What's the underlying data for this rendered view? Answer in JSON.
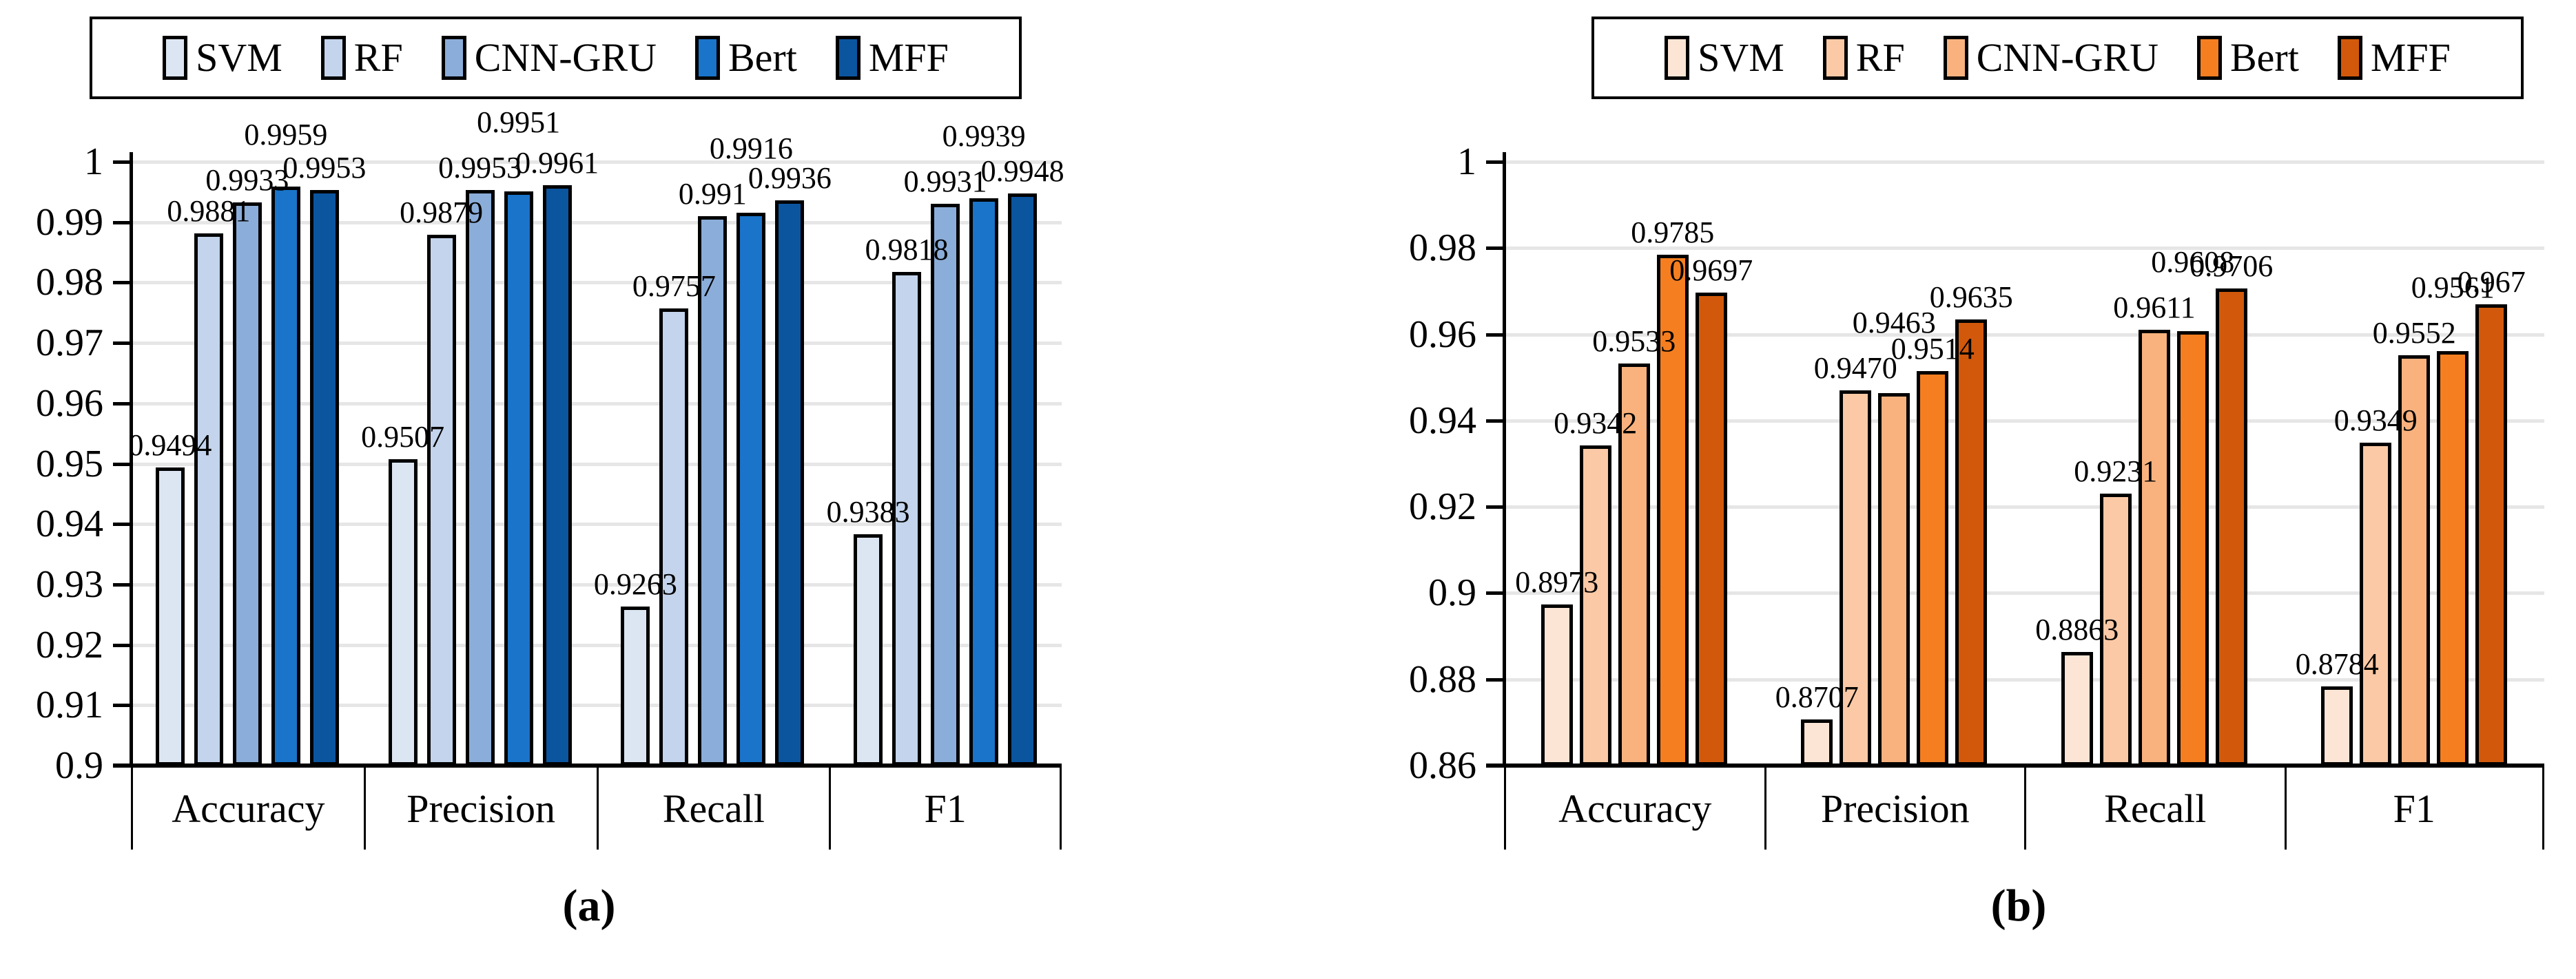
{
  "figure": {
    "background": "#ffffff",
    "grid_color": "#e6e6e6",
    "axis_color": "#000000",
    "captions": [
      "(a)",
      "(b)"
    ]
  },
  "chart_data": [
    {
      "type": "bar",
      "panel": "a",
      "caption": "(a)",
      "title": "",
      "xlabel": "",
      "ylabel": "",
      "grid": true,
      "legend_position": "top",
      "categories": [
        "Accuracy",
        "Precision",
        "Recall",
        "F1"
      ],
      "ylim": [
        0.9,
        1
      ],
      "y_ticks": [
        "1",
        "0.99",
        "0.98",
        "0.97",
        "0.96",
        "0.95",
        "0.94",
        "0.93",
        "0.92",
        "0.91",
        "0.9"
      ],
      "series": [
        {
          "name": "SVM",
          "color": "#dce6f2",
          "values": [
            0.9494,
            0.9507,
            0.9263,
            0.9383
          ],
          "labels": [
            "0.9494",
            "0.9507",
            "0.9263",
            "0.9383"
          ]
        },
        {
          "name": "RF",
          "color": "#c3d4ec",
          "values": [
            0.9881,
            0.9879,
            0.9757,
            0.9818
          ],
          "labels": [
            "0.9881",
            "0.9879",
            "0.9757",
            "0.9818"
          ]
        },
        {
          "name": "CNN-GRU",
          "color": "#8badd9",
          "values": [
            0.9933,
            0.9953,
            0.991,
            0.9931
          ],
          "labels": [
            "0.9933",
            "0.9953",
            "0.991",
            "0.9931"
          ]
        },
        {
          "name": "Bert",
          "color": "#1a74c9",
          "values": [
            0.9959,
            0.9951,
            0.9916,
            0.9939
          ],
          "labels": [
            "0.9959",
            "0.9951",
            "0.9916",
            "0.9939"
          ]
        },
        {
          "name": "MFF",
          "color": "#0b559f",
          "values": [
            0.9953,
            0.9961,
            0.9936,
            0.9948
          ],
          "labels": [
            "0.9953",
            "0.9961",
            "0.9936",
            "0.9948"
          ]
        }
      ]
    },
    {
      "type": "bar",
      "panel": "b",
      "caption": "(b)",
      "title": "",
      "xlabel": "",
      "ylabel": "",
      "grid": true,
      "legend_position": "top",
      "categories": [
        "Accuracy",
        "Precision",
        "Recall",
        "F1"
      ],
      "ylim": [
        0.86,
        1
      ],
      "y_ticks": [
        "1",
        "0.98",
        "0.96",
        "0.94",
        "0.92",
        "0.9",
        "0.88",
        "0.86"
      ],
      "series": [
        {
          "name": "SVM",
          "color": "#fce5d5",
          "values": [
            0.8973,
            0.8707,
            0.8863,
            0.8784
          ],
          "labels": [
            "0.8973",
            "0.8707",
            "0.8863",
            "0.8784"
          ]
        },
        {
          "name": "RF",
          "color": "#fbc9a5",
          "values": [
            0.9342,
            0.947,
            0.9231,
            0.9349
          ],
          "labels": [
            "0.9342",
            "0.9470",
            "0.9231",
            "0.9349"
          ]
        },
        {
          "name": "CNN-GRU",
          "color": "#f9b27e",
          "values": [
            0.9533,
            0.9463,
            0.9611,
            0.9552
          ],
          "labels": [
            "0.9533",
            "0.9463",
            "0.9611",
            "0.9552"
          ]
        },
        {
          "name": "Bert",
          "color": "#f57e20",
          "values": [
            0.9785,
            0.9514,
            0.9608,
            0.9561
          ],
          "labels": [
            "0.9785",
            "0.9514",
            "0.9608",
            "0.9561"
          ]
        },
        {
          "name": "MFF",
          "color": "#d2590b",
          "values": [
            0.9697,
            0.9635,
            0.9706,
            0.967
          ],
          "labels": [
            "0.9697",
            "0.9635",
            "0.9706",
            "0.967"
          ]
        }
      ]
    }
  ]
}
